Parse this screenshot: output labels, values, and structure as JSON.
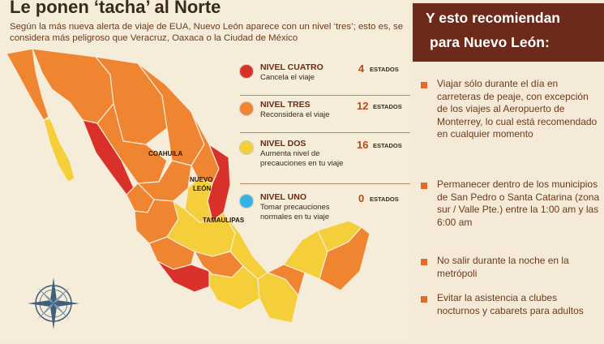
{
  "headline": "Le ponen ‘tacha’ al Norte",
  "subtitle": "Según la más nueva alerta de viaje de EUA, Nuevo León aparece con un nivel ‘tres’; esto es, se considera más peligroso que Veracruz, Oaxaca o la Ciudad de México",
  "legend": [
    {
      "level": "NIVEL CUATRO",
      "desc": "Cancela el viaje",
      "count": "4",
      "count_label": "ESTADOS",
      "color": "#d9302a"
    },
    {
      "level": "NIVEL TRES",
      "desc": "Reconsidera el viaje",
      "count": "12",
      "count_label": "ESTADOS",
      "color": "#ef8531"
    },
    {
      "level": "NIVEL DOS",
      "desc": "Aumenta nivel de precauciones en tu viaje",
      "count": "16",
      "count_label": "ESTADOS",
      "color": "#f5cf3a"
    },
    {
      "level": "NIVEL UNO",
      "desc": "Tomar precauciones normales en tu viaje",
      "count": "0",
      "count_label": "ESTADOS",
      "color": "#35b3e8"
    }
  ],
  "map_labels": {
    "coahuila": "COAHUILA",
    "nuevo_leon_1": "NUEVO",
    "nuevo_leon_2": "LEÓN",
    "tamaulipas": "TAMAULIPAS"
  },
  "panel": {
    "header_line1": "Y esto recomiendan",
    "header_line2": "para Nuevo León:",
    "recommendations": [
      "Viajar sólo durante el día en carreteras de peaje, con excepción de los viajes al Aeropuerto de Monterrey, lo cual está recomendado en cualquier momento",
      "Permanecer dentro de los municipios de San Pedro o Santa Catarina (zona sur / Valle Pte.) entre la 1:00 am y las 6:00 am",
      "No salir durante la noche en la metrópoli",
      "Evitar la asistencia a clubes nocturnos y cabarets para adultos"
    ]
  },
  "colors": {
    "level_four": "#d9302a",
    "level_three": "#ef8531",
    "level_two": "#f5cf3a",
    "level_one": "#35b3e8",
    "panel_header_bg": "#6b2a1a",
    "bullet": "#e26a2c",
    "text_brown": "#6b3a1c"
  },
  "icons": {
    "compass": "compass-rose-icon",
    "bullet": "square-bullet-icon"
  }
}
